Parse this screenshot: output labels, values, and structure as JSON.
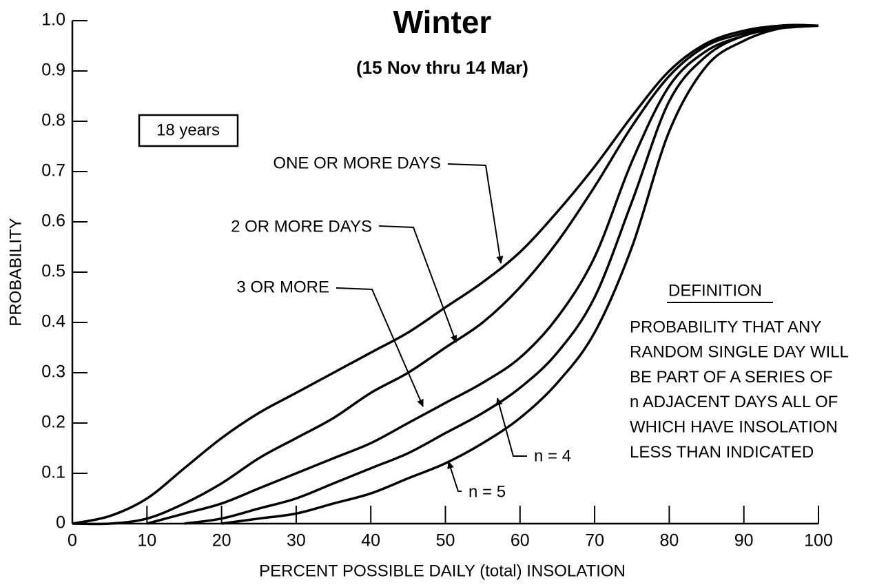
{
  "chart_data": {
    "type": "line",
    "title": "Winter",
    "subtitle": "(15 Nov thru 14 Mar)",
    "x_label": "PERCENT POSSIBLE DAILY (total) INSOLATION",
    "y_label": "PROBABILITY",
    "note": "18 years",
    "definition": {
      "title": "DEFINITION",
      "lines": [
        "PROBABILITY THAT ANY",
        "RANDOM SINGLE DAY WILL",
        "BE PART OF A SERIES OF",
        "n ADJACENT DAYS ALL OF",
        "WHICH HAVE INSOLATION",
        "LESS THAN INDICATED"
      ]
    },
    "x": [
      0,
      5,
      10,
      15,
      20,
      25,
      30,
      35,
      40,
      45,
      50,
      55,
      60,
      65,
      70,
      75,
      80,
      85,
      90,
      95,
      100
    ],
    "series": [
      {
        "name": "ONE OR MORE DAYS",
        "color": "#000000",
        "values": [
          0,
          0.015,
          0.05,
          0.11,
          0.17,
          0.22,
          0.26,
          0.3,
          0.34,
          0.38,
          0.43,
          0.48,
          0.54,
          0.62,
          0.71,
          0.81,
          0.9,
          0.955,
          0.98,
          0.99,
          0.99
        ]
      },
      {
        "name": "2 OR MORE DAYS",
        "color": "#000000",
        "values": [
          0,
          0,
          0.01,
          0.04,
          0.08,
          0.13,
          0.17,
          0.21,
          0.26,
          0.3,
          0.35,
          0.4,
          0.47,
          0.56,
          0.67,
          0.79,
          0.89,
          0.95,
          0.975,
          0.99,
          0.99
        ]
      },
      {
        "name": "3 OR MORE",
        "color": "#000000",
        "values": [
          null,
          null,
          0,
          0.02,
          0.04,
          0.07,
          0.1,
          0.13,
          0.16,
          0.2,
          0.24,
          0.28,
          0.33,
          0.41,
          0.53,
          0.72,
          0.87,
          0.94,
          0.97,
          0.99,
          0.99
        ]
      },
      {
        "name": "n = 4",
        "color": "#000000",
        "values": [
          null,
          null,
          null,
          0,
          0.01,
          0.03,
          0.05,
          0.08,
          0.11,
          0.14,
          0.18,
          0.22,
          0.27,
          0.34,
          0.45,
          0.64,
          0.84,
          0.93,
          0.97,
          0.985,
          0.99
        ]
      },
      {
        "name": "n = 5",
        "color": "#000000",
        "values": [
          null,
          null,
          null,
          null,
          0,
          0.01,
          0.02,
          0.04,
          0.06,
          0.09,
          0.12,
          0.16,
          0.21,
          0.28,
          0.38,
          0.55,
          0.78,
          0.91,
          0.96,
          0.985,
          0.99
        ]
      }
    ],
    "xlim": [
      0,
      100
    ],
    "ylim": [
      0,
      1
    ],
    "xticks": [
      0,
      10,
      20,
      30,
      40,
      50,
      60,
      70,
      80,
      90,
      100
    ],
    "yticks": [
      0,
      0.1,
      0.2,
      0.3,
      0.4,
      0.5,
      0.6,
      0.7,
      0.8,
      0.9,
      {
        "value": 1,
        "label": "1.0"
      }
    ],
    "grid": false
  }
}
